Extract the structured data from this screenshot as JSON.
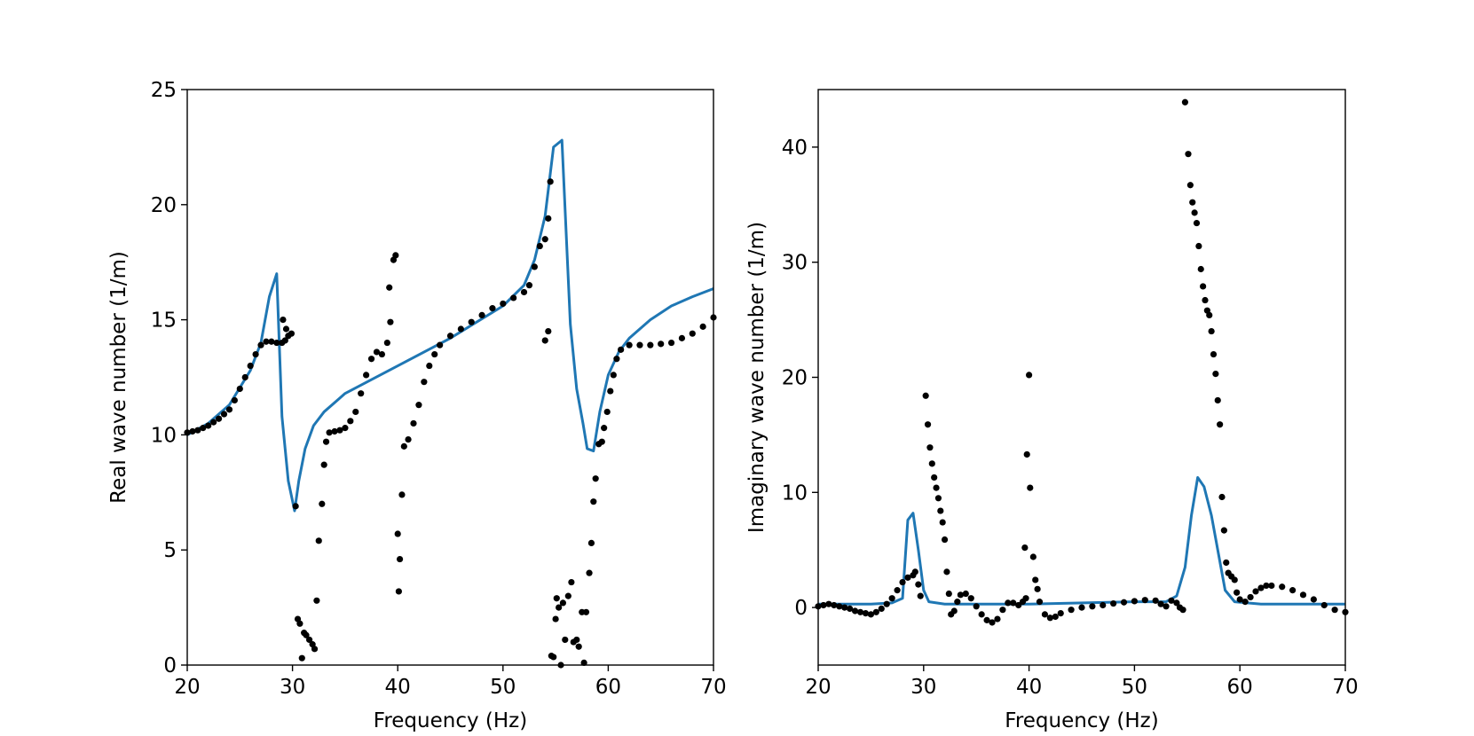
{
  "chart_data": [
    {
      "type": "line",
      "xlabel": "Frequency (Hz)",
      "ylabel": "Real wave number (1/m)",
      "xlim": [
        20,
        70
      ],
      "xticks": [
        20,
        30,
        40,
        50,
        60,
        70
      ],
      "ylim": [
        0,
        25
      ],
      "yticks": [
        0,
        5,
        10,
        15,
        20,
        25
      ],
      "series": [
        {
          "mode": "lines",
          "color": "#1f77b4",
          "x": [
            20,
            22,
            24,
            26,
            27,
            27.8,
            28.5,
            29.0,
            29.6,
            30.2,
            30.6,
            31.2,
            32,
            33,
            35,
            40,
            45,
            50,
            52,
            53,
            54,
            54.8,
            55.6,
            56.4,
            57,
            57.6,
            58.0,
            58.6,
            59.2,
            60,
            61,
            62,
            64,
            66,
            68,
            70
          ],
          "values": [
            10.0,
            10.5,
            11.3,
            12.8,
            14.0,
            16.0,
            17.0,
            10.8,
            8.0,
            6.7,
            8.0,
            9.4,
            10.4,
            11.0,
            11.8,
            13.0,
            14.2,
            15.6,
            16.5,
            17.6,
            19.5,
            22.5,
            22.8,
            14.8,
            12.0,
            10.5,
            9.4,
            9.3,
            11.0,
            12.6,
            13.6,
            14.2,
            15.0,
            15.6,
            16.0,
            16.35
          ]
        },
        {
          "mode": "markers",
          "color": "#000000",
          "x": [
            20,
            20.5,
            21,
            21.5,
            22,
            22.5,
            23,
            23.5,
            24,
            24.5,
            25,
            25.5,
            26,
            26.5,
            27,
            27.5,
            28,
            28.5,
            29,
            29.1,
            29.3,
            29.4,
            29.6,
            29.9,
            30.3,
            30.5,
            30.7,
            30.9,
            31.1,
            31.3,
            31.6,
            31.9,
            32.1,
            32.3,
            32.5,
            32.8,
            33.0,
            33.2,
            33.5,
            34,
            34.5,
            35,
            35.5,
            36,
            36.5,
            37,
            37.5,
            38,
            38.5,
            39,
            39.2,
            39.3,
            39.6,
            39.8,
            40.0,
            40.1,
            40.2,
            40.4,
            40.6,
            41,
            41.5,
            42,
            42.5,
            43,
            43.5,
            44,
            45,
            46,
            47,
            48,
            49,
            50,
            51,
            52,
            52.5,
            53,
            53.5,
            54,
            54.0,
            54.3,
            54.3,
            54.5,
            54.6,
            54.8,
            55.0,
            55.1,
            55.3,
            55.5,
            55.7,
            55.9,
            56.2,
            56.5,
            56.7,
            57.0,
            57.2,
            57.5,
            57.7,
            57.9,
            58.2,
            58.4,
            58.6,
            58.8,
            59.1,
            59.4,
            59.6,
            59.9,
            60.2,
            60.5,
            60.8,
            61.2,
            62,
            63,
            64,
            65,
            66,
            67,
            68,
            69,
            70
          ],
          "values": [
            10.1,
            10.15,
            10.2,
            10.3,
            10.4,
            10.55,
            10.7,
            10.9,
            11.1,
            11.5,
            12.0,
            12.5,
            13.0,
            13.5,
            13.9,
            14.05,
            14.05,
            14.0,
            14.0,
            15.0,
            14.1,
            14.6,
            14.3,
            14.4,
            6.9,
            2.0,
            1.8,
            0.3,
            1.4,
            1.3,
            1.1,
            0.9,
            0.7,
            2.8,
            5.4,
            7.0,
            8.7,
            9.7,
            10.1,
            10.15,
            10.2,
            10.3,
            10.6,
            11.0,
            11.8,
            12.6,
            13.3,
            13.6,
            13.5,
            14.0,
            16.4,
            14.9,
            17.6,
            17.8,
            5.7,
            3.2,
            4.6,
            7.4,
            9.5,
            9.8,
            10.5,
            11.3,
            12.3,
            13.0,
            13.5,
            13.9,
            14.3,
            14.6,
            14.9,
            15.2,
            15.5,
            15.7,
            15.95,
            16.2,
            16.5,
            17.3,
            18.2,
            18.5,
            14.1,
            19.4,
            14.5,
            21.0,
            0.4,
            0.35,
            2.0,
            2.9,
            2.5,
            0.0,
            2.7,
            1.1,
            3.0,
            3.6,
            1.0,
            1.1,
            0.8,
            2.3,
            0.1,
            2.3,
            4.0,
            5.3,
            7.1,
            8.1,
            9.6,
            9.7,
            10.3,
            11.0,
            11.9,
            12.6,
            13.3,
            13.7,
            13.9,
            13.9,
            13.9,
            13.95,
            14.0,
            14.2,
            14.4,
            14.7,
            15.1
          ]
        }
      ]
    },
    {
      "type": "line",
      "xlabel": "Frequency (Hz)",
      "ylabel": "Imaginary wave number (1/m)",
      "xlim": [
        20,
        70
      ],
      "xticks": [
        20,
        30,
        40,
        50,
        60,
        70
      ],
      "ylim": [
        -5,
        45
      ],
      "yticks": [
        0,
        10,
        20,
        30,
        40
      ],
      "series": [
        {
          "mode": "lines",
          "color": "#1f77b4",
          "x": [
            20,
            25,
            27,
            28,
            28.5,
            29,
            29.5,
            30,
            30.5,
            32,
            40,
            50,
            53,
            54,
            54.8,
            55.4,
            56,
            56.6,
            57.3,
            58,
            58.6,
            59.5,
            62,
            70
          ],
          "values": [
            0.3,
            0.3,
            0.4,
            0.8,
            7.6,
            8.2,
            5.0,
            1.5,
            0.5,
            0.3,
            0.3,
            0.5,
            0.5,
            1.0,
            3.5,
            8.0,
            11.3,
            10.5,
            8.0,
            4.5,
            1.5,
            0.5,
            0.3,
            0.3
          ]
        },
        {
          "mode": "markers",
          "color": "#000000",
          "x": [
            20,
            20.5,
            21,
            21.5,
            22,
            22.5,
            23,
            23.5,
            24,
            24.5,
            25,
            25.5,
            26,
            26.5,
            27,
            27.5,
            28,
            28.5,
            29,
            29.2,
            29.5,
            29.7,
            30.2,
            30.4,
            30.6,
            30.8,
            31.0,
            31.2,
            31.4,
            31.6,
            31.8,
            32.0,
            32.2,
            32.4,
            32.6,
            32.9,
            33.2,
            33.5,
            34,
            34.5,
            35,
            35.5,
            36,
            36.5,
            37,
            37.5,
            38,
            38.5,
            39,
            39.4,
            39.6,
            39.7,
            39.8,
            40,
            40.1,
            40.4,
            40.6,
            40.8,
            41,
            41.5,
            42,
            42.5,
            43,
            44,
            45,
            46,
            47,
            48,
            49,
            50,
            51,
            52,
            52.5,
            53,
            53.5,
            54,
            54.3,
            54.6,
            54.8,
            55.1,
            55.3,
            55.5,
            55.7,
            55.9,
            56.1,
            56.3,
            56.5,
            56.7,
            56.9,
            57.1,
            57.3,
            57.5,
            57.7,
            57.9,
            58.1,
            58.3,
            58.5,
            58.7,
            58.9,
            59.2,
            59.5,
            59.7,
            60,
            60.5,
            61,
            61.5,
            62,
            62.5,
            63,
            64,
            65,
            66,
            67,
            68,
            69,
            70
          ],
          "values": [
            0.1,
            0.2,
            0.3,
            0.2,
            0.1,
            0,
            -0.1,
            -0.3,
            -0.4,
            -0.5,
            -0.6,
            -0.4,
            -0.1,
            0.3,
            0.8,
            1.5,
            2.2,
            2.6,
            2.8,
            3.1,
            2.0,
            1.0,
            18.4,
            15.9,
            13.9,
            12.5,
            11.3,
            10.4,
            9.5,
            8.4,
            7.4,
            5.9,
            3.1,
            1.2,
            -0.6,
            -0.3,
            0.5,
            1.1,
            1.2,
            0.8,
            0.1,
            -0.6,
            -1.1,
            -1.3,
            -1.0,
            -0.2,
            0.4,
            0.4,
            0.2,
            0.5,
            5.2,
            0.8,
            13.3,
            20.2,
            10.4,
            4.4,
            2.4,
            1.6,
            0.5,
            -0.6,
            -0.9,
            -0.8,
            -0.5,
            -0.2,
            0,
            0.1,
            0.2,
            0.35,
            0.45,
            0.55,
            0.65,
            0.6,
            0.3,
            0.1,
            0.6,
            0.4,
            0.0,
            -0.2,
            43.9,
            39.4,
            36.7,
            35.2,
            34.3,
            33.4,
            31.4,
            29.4,
            27.9,
            26.7,
            25.8,
            25.4,
            24.0,
            22.0,
            20.3,
            18.0,
            15.9,
            9.6,
            6.7,
            3.9,
            3.0,
            2.7,
            2.4,
            1.3,
            0.7,
            0.5,
            0.9,
            1.4,
            1.7,
            1.9,
            1.9,
            1.8,
            1.5,
            1.1,
            0.7,
            0.2,
            -0.2,
            -0.4
          ]
        }
      ]
    }
  ]
}
